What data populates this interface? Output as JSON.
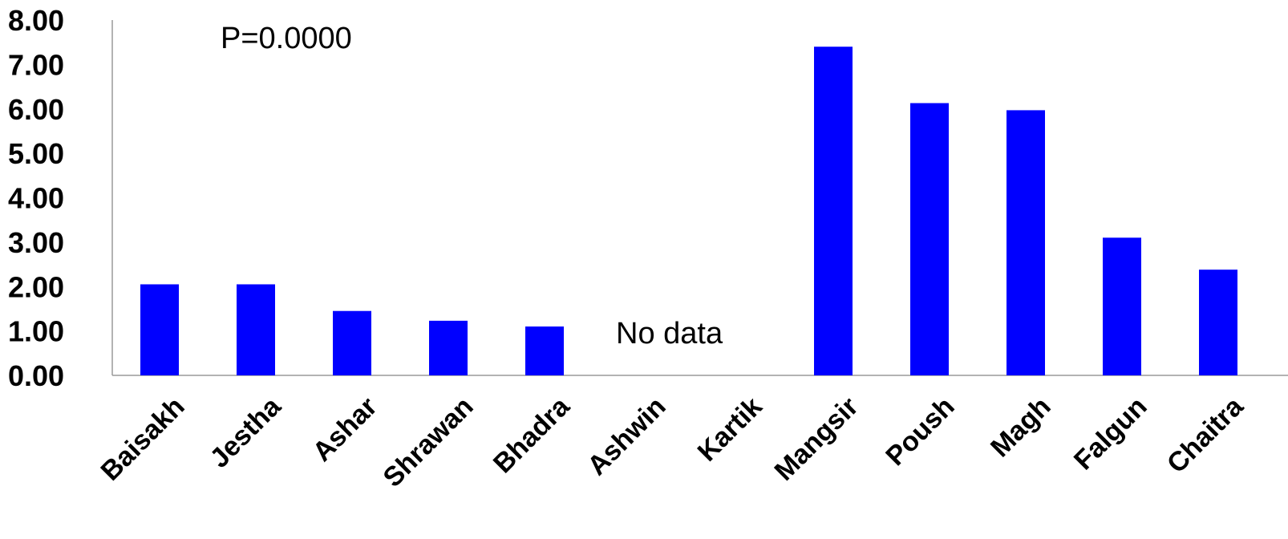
{
  "chart_data": {
    "type": "bar",
    "title": "",
    "xlabel": "",
    "ylabel": "",
    "ylim": [
      0,
      8
    ],
    "yticks": [
      "0.00",
      "1.00",
      "2.00",
      "3.00",
      "4.00",
      "5.00",
      "6.00",
      "7.00",
      "8.00"
    ],
    "grid": false,
    "legend": "none",
    "bar_color": "#0000ff",
    "categories": [
      "Baisakh",
      "Jestha",
      "Ashar",
      "Shrawan",
      "Bhadra",
      "Ashwin",
      "Kartik",
      "Mangsir",
      "Poush",
      "Magh",
      "Falgun",
      "Chaitra"
    ],
    "values": [
      2.05,
      2.05,
      1.45,
      1.23,
      1.1,
      null,
      null,
      7.4,
      6.13,
      5.97,
      3.1,
      2.38
    ],
    "annotations": {
      "p_value": "P=0.0000",
      "missing": "No data"
    }
  }
}
